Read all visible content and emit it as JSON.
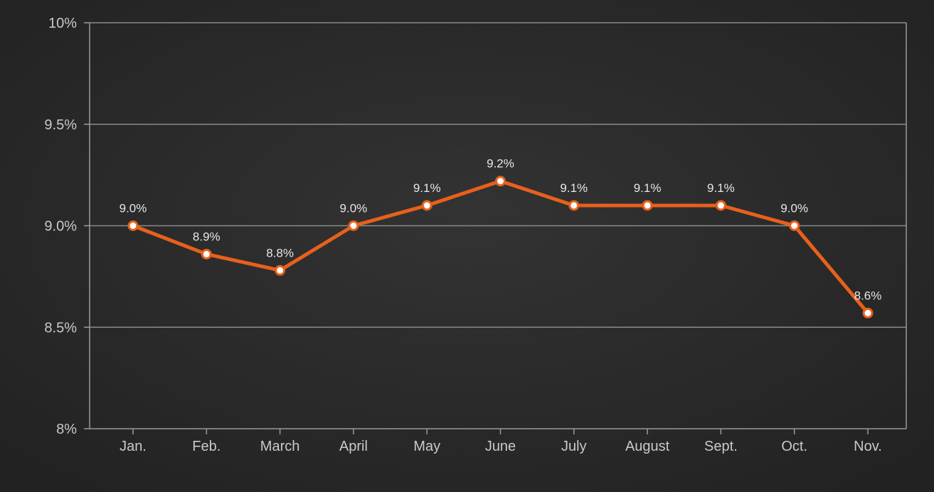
{
  "chart_data": {
    "type": "line",
    "categories": [
      "Jan.",
      "Feb.",
      "March",
      "April",
      "May",
      "June",
      "July",
      "August",
      "Sept.",
      "Oct.",
      "Nov."
    ],
    "series": [
      {
        "values": [
          9.0,
          8.86,
          8.78,
          9.0,
          9.1,
          9.22,
          9.1,
          9.1,
          9.1,
          9.0,
          8.57
        ],
        "data_labels": [
          "9.0%",
          "8.9%",
          "8.8%",
          "9.0%",
          "9.1%",
          "9.2%",
          "9.1%",
          "9.1%",
          "9.1%",
          "9.0%",
          "8.6%"
        ]
      }
    ],
    "yticks": [
      8,
      8.5,
      9,
      9.5,
      10
    ],
    "ytick_labels": [
      "8%",
      "8.5%",
      "9.0%",
      "9.5%",
      "10%"
    ],
    "ylim": [
      8,
      10
    ],
    "grid": true,
    "title": "",
    "xlabel": "",
    "ylabel": "",
    "colors": {
      "line": "#e8601c",
      "marker_fill": "#ffffff",
      "grid": "#8a8a8a",
      "axis": "#9a9a9a",
      "background": "#262626"
    }
  }
}
